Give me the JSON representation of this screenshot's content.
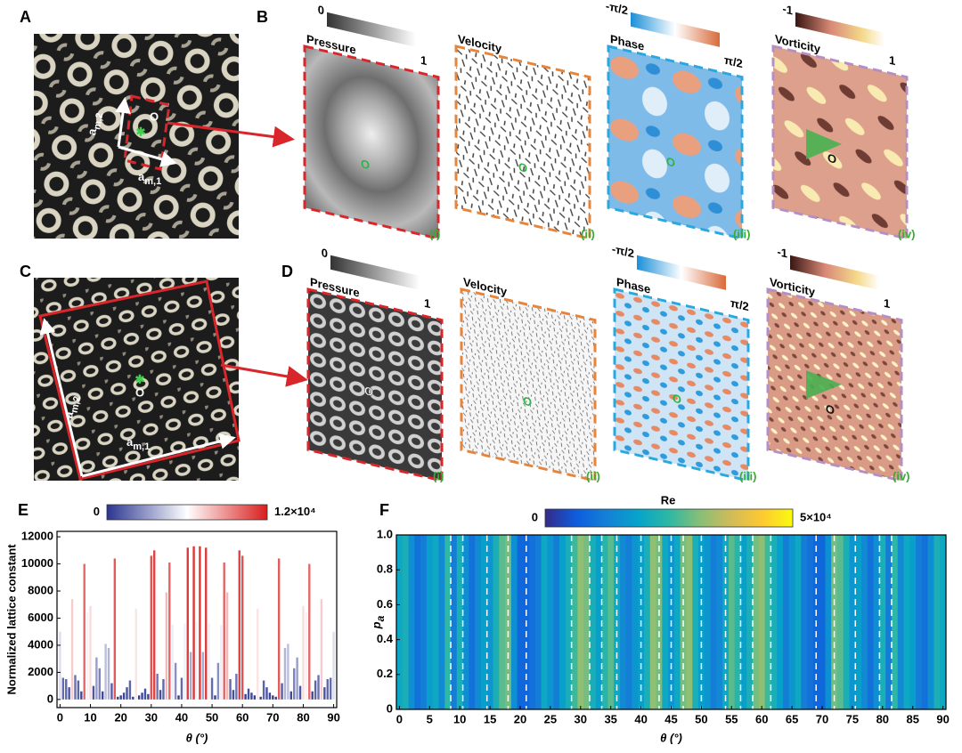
{
  "panel_a": {
    "label": "A",
    "origin": "O",
    "vec2": {
      "base": "a",
      "sub": "m,2"
    },
    "vec1": {
      "base": "a",
      "sub": "m,1"
    }
  },
  "panel_b": {
    "label": "B",
    "maps": [
      {
        "title": "Pressure",
        "cbar_labels": [
          "0",
          "1"
        ],
        "origin": "O",
        "index": "(i)"
      },
      {
        "title": "Velocity",
        "origin": "O",
        "index": "(ii)"
      },
      {
        "title": "Phase",
        "cbar_labels": [
          "-π/2",
          "π/2"
        ],
        "origin": "O",
        "index": "(iii)"
      },
      {
        "title": "Vorticity",
        "cbar_labels": [
          "-1",
          "1"
        ],
        "origin": "O",
        "index": "(iv)"
      }
    ]
  },
  "panel_c": {
    "label": "C",
    "origin": "O",
    "vec2": {
      "base": "a",
      "sub": "m,2"
    },
    "vec1": {
      "base": "a",
      "sub": "m,1"
    }
  },
  "panel_d": {
    "label": "D",
    "maps": [
      {
        "title": "Pressure",
        "cbar_labels": [
          "0",
          "1"
        ],
        "origin": "O",
        "index": "(i)"
      },
      {
        "title": "Velocity",
        "origin": "O",
        "index": "(ii)"
      },
      {
        "title": "Phase",
        "cbar_labels": [
          "-π/2",
          "π/2"
        ],
        "origin": "O",
        "index": "(iii)"
      },
      {
        "title": "Vorticity",
        "cbar_labels": [
          "-1",
          "1"
        ],
        "origin": "O",
        "index": "(iv)"
      }
    ]
  },
  "chart_data": [
    {
      "type": "bar",
      "panel_label": "E",
      "x": [
        0,
        1,
        2,
        3,
        4,
        5,
        6,
        7,
        8,
        9,
        10,
        11,
        12,
        13,
        14,
        15,
        16,
        17,
        18,
        19,
        20,
        21,
        22,
        23,
        24,
        25,
        26,
        27,
        28,
        29,
        30,
        31,
        32,
        33,
        34,
        35,
        36,
        37,
        38,
        39,
        40,
        41,
        42,
        43,
        44,
        45,
        46,
        47,
        48,
        49,
        50,
        51,
        52,
        53,
        54,
        55,
        56,
        57,
        58,
        59,
        60,
        61,
        62,
        63,
        64,
        65,
        66,
        67,
        68,
        69,
        70,
        71,
        72,
        73,
        74,
        75,
        76,
        77,
        78,
        79,
        80,
        81,
        82,
        83,
        84,
        85,
        86,
        87,
        88,
        89,
        90
      ],
      "values": [
        5000,
        1600,
        1500,
        900,
        7400,
        1800,
        1400,
        600,
        10000,
        6400,
        6900,
        1000,
        3100,
        2300,
        600,
        4100,
        3800,
        1200,
        10400,
        200,
        300,
        500,
        900,
        1400,
        200,
        6700,
        300,
        500,
        800,
        400,
        10600,
        11000,
        1900,
        700,
        1500,
        7900,
        10100,
        5500,
        2700,
        300,
        1600,
        5600,
        11200,
        3500,
        11300,
        5700,
        11300,
        3500,
        11200,
        5600,
        1600,
        300,
        2700,
        5500,
        10100,
        7900,
        1500,
        700,
        1900,
        11000,
        10600,
        400,
        800,
        500,
        300,
        6700,
        200,
        1400,
        900,
        500,
        300,
        200,
        10400,
        1200,
        3800,
        4100,
        600,
        2300,
        3100,
        1000,
        6900,
        6400,
        10000,
        600,
        1400,
        1800,
        7400,
        900,
        1500,
        1600,
        5000
      ],
      "xlim": [
        -1,
        91
      ],
      "ylim": [
        -600,
        12400
      ],
      "xticks": [
        0,
        10,
        20,
        30,
        40,
        50,
        60,
        70,
        80,
        90
      ],
      "yticks": [
        0,
        2000,
        4000,
        6000,
        8000,
        10000,
        12000
      ],
      "xlabel": "θ (°)",
      "ylabel": "Normalized lattice constant",
      "colorbar": {
        "range": [
          0,
          12000
        ],
        "ticks": [
          0,
          {
            "value": 12000,
            "label": "1.2×10⁴"
          }
        ],
        "colors": [
          "#2a3590",
          "#ffffff",
          "#d81e1e"
        ]
      }
    },
    {
      "type": "heatmap",
      "panel_label": "F",
      "title": "Re",
      "x": [
        0,
        1,
        2,
        3,
        4,
        5,
        6,
        7,
        8,
        9,
        10,
        11,
        12,
        13,
        14,
        15,
        16,
        17,
        18,
        19,
        20,
        21,
        22,
        23,
        24,
        25,
        26,
        27,
        28,
        29,
        30,
        31,
        32,
        33,
        34,
        35,
        36,
        37,
        38,
        39,
        40,
        41,
        42,
        43,
        44,
        45,
        46,
        47,
        48,
        49,
        50,
        51,
        52,
        53,
        54,
        55,
        56,
        57,
        58,
        59,
        60,
        61,
        62,
        63,
        64,
        65,
        66,
        67,
        68,
        69,
        70,
        71,
        72,
        73,
        74,
        75,
        76,
        77,
        78,
        79,
        80,
        81,
        82,
        83,
        84,
        85,
        86,
        87,
        88,
        89,
        90
      ],
      "values": [
        20000,
        22000,
        15000,
        10000,
        12000,
        18000,
        20000,
        14000,
        25000,
        12000,
        22000,
        15000,
        10000,
        14000,
        18000,
        16000,
        22000,
        28000,
        30000,
        15000,
        8000,
        8000,
        10000,
        12000,
        20000,
        16000,
        12000,
        18000,
        22000,
        26000,
        32000,
        30000,
        22000,
        18000,
        24000,
        28000,
        20000,
        14000,
        12000,
        16000,
        18000,
        22000,
        32000,
        30000,
        20000,
        16000,
        20000,
        30000,
        32000,
        22000,
        18000,
        16000,
        12000,
        14000,
        20000,
        28000,
        24000,
        18000,
        22000,
        30000,
        32000,
        26000,
        22000,
        18000,
        12000,
        16000,
        20000,
        12000,
        10000,
        8000,
        8000,
        15000,
        30000,
        28000,
        22000,
        16000,
        18000,
        14000,
        10000,
        15000,
        22000,
        12000,
        25000,
        14000,
        20000,
        18000,
        12000,
        10000,
        15000,
        22000,
        20000
      ],
      "dashed_lines": [
        8.5,
        10.5,
        14.5,
        18,
        21,
        28.5,
        31.5,
        33.5,
        36,
        40,
        43,
        45,
        47,
        50,
        54,
        56.5,
        58.5,
        61.5,
        69,
        72,
        75.5,
        79.5,
        81.5
      ],
      "xlim": [
        -0.5,
        90.5
      ],
      "ylim": [
        0,
        1
      ],
      "xticks": [
        0,
        5,
        10,
        15,
        20,
        25,
        30,
        35,
        40,
        45,
        50,
        55,
        60,
        65,
        70,
        75,
        80,
        85,
        90
      ],
      "yticks": [
        0,
        0.2,
        0.4,
        0.6,
        0.8,
        {
          "value": 1,
          "label": "1.0"
        }
      ],
      "xlabel": "θ (°)",
      "ylabel": {
        "base": "p",
        "sub": "a"
      },
      "colorbar": {
        "range": [
          0,
          50000
        ],
        "ticks": [
          0,
          {
            "value": 50000,
            "label": "5×10⁴"
          }
        ],
        "colors": [
          "#352a87",
          "#0f5cdd",
          "#1481d6",
          "#06a4ca",
          "#2eb7a4",
          "#87bf77",
          "#d1bb59",
          "#fec832",
          "#f9fb0e"
        ]
      }
    }
  ]
}
